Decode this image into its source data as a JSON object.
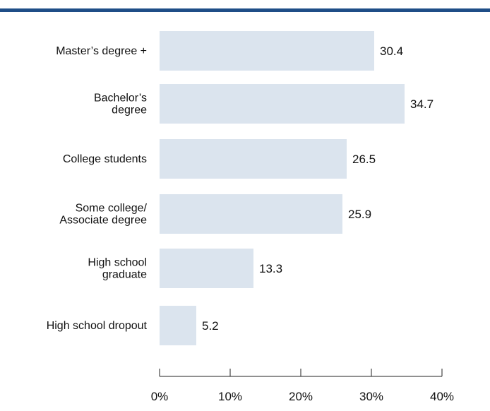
{
  "colors": {
    "header_rule": "#1f4e87",
    "bar_fill": "#dbe4ee",
    "axis": "#222222",
    "text": "#111111"
  },
  "chart_data": {
    "type": "bar",
    "orientation": "horizontal",
    "categories": [
      [
        "Master’s degree +"
      ],
      [
        "Bachelor’s",
        "degree"
      ],
      [
        "College students"
      ],
      [
        "Some college/",
        "Associate degree"
      ],
      [
        "High school",
        "graduate"
      ],
      [
        "High school dropout"
      ]
    ],
    "values": [
      30.4,
      34.7,
      26.5,
      25.9,
      13.3,
      5.2
    ],
    "value_labels": [
      "30.4",
      "34.7",
      "26.5",
      "25.9",
      "13.3",
      "5.2"
    ],
    "xlim": [
      0,
      40
    ],
    "xticks": [
      0,
      10,
      20,
      30,
      40
    ],
    "xtick_labels": [
      "0%",
      "10%",
      "20%",
      "30%",
      "40%"
    ],
    "title": "",
    "xlabel": "",
    "ylabel": "",
    "grid": false,
    "legend": "none"
  }
}
